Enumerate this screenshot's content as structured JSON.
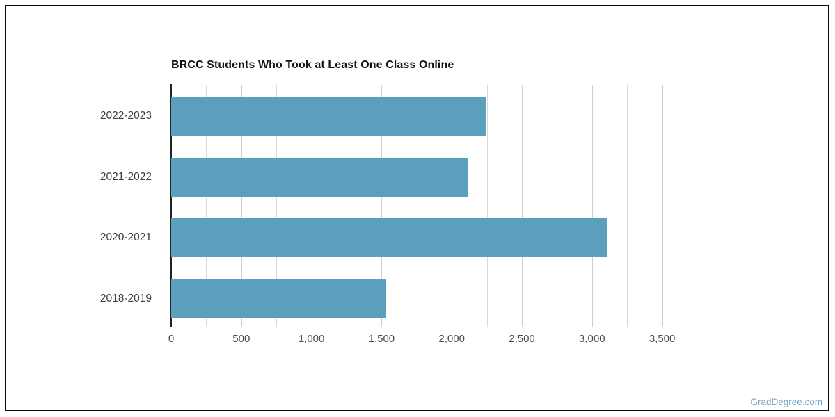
{
  "watermark": "GradDegree.com",
  "chart_data": {
    "type": "bar",
    "orientation": "horizontal",
    "title": "BRCC Students Who Took at Least One Class Online",
    "categories": [
      "2022-2023",
      "2021-2022",
      "2020-2021",
      "2018-2019"
    ],
    "values": [
      2244,
      2117,
      3111,
      1533
    ],
    "xlabel": "",
    "ylabel": "",
    "xlim": [
      0,
      3500
    ],
    "x_ticks": [
      0,
      500,
      1000,
      1500,
      2000,
      2500,
      3000,
      3500
    ],
    "x_tick_labels": [
      "0",
      "500",
      "1,000",
      "1,500",
      "2,000",
      "2,500",
      "3,000",
      "3,500"
    ],
    "grid": true,
    "grid_interval": 250,
    "legend_position": "none",
    "bar_color": "#5AA0BC",
    "gridline_color": "#d9d9d9",
    "axis_line_color": "#222222"
  }
}
